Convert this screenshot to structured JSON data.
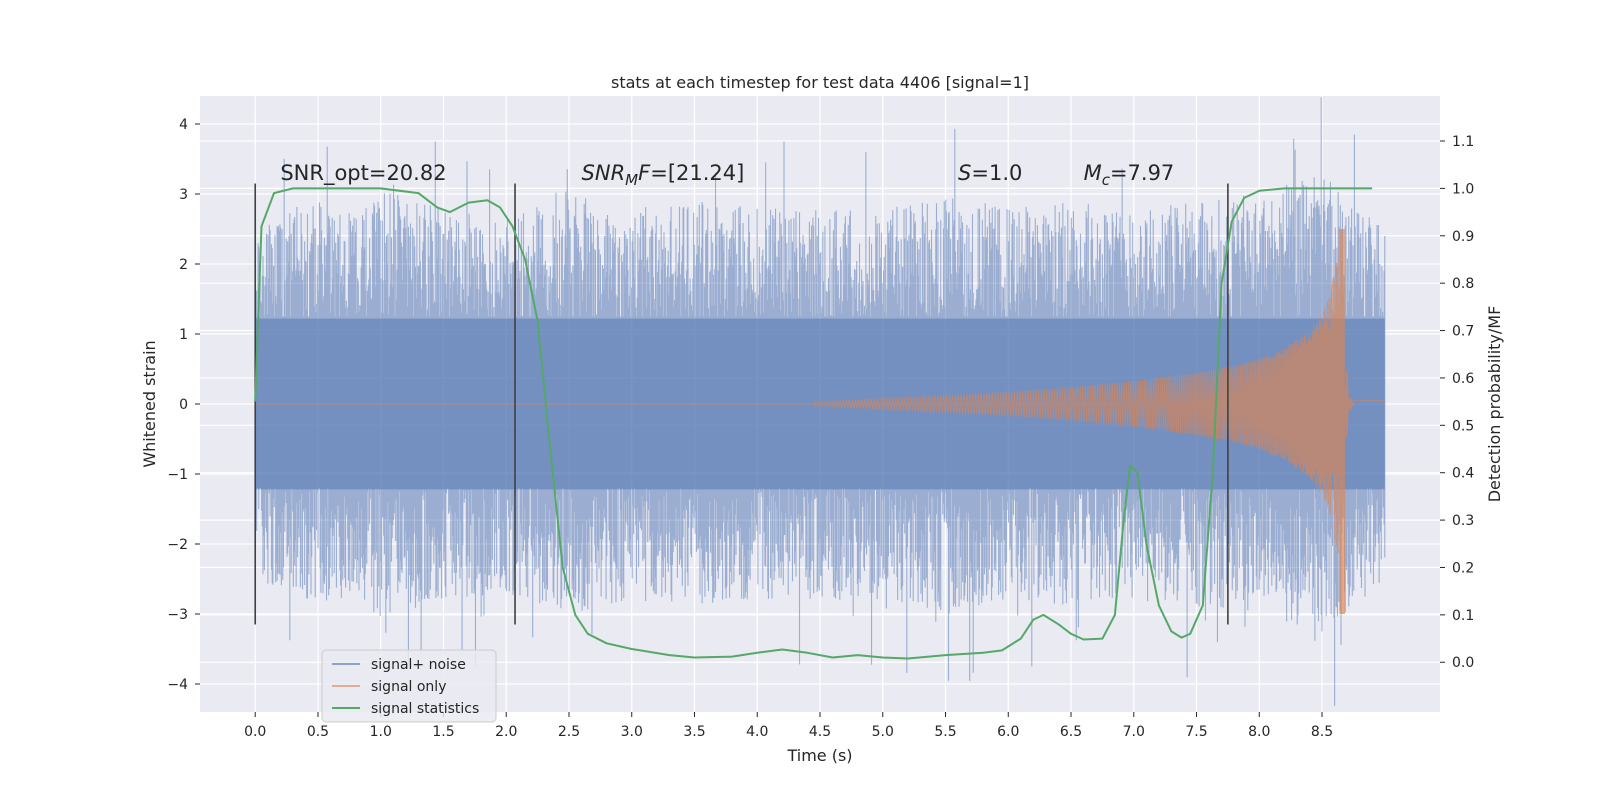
{
  "colors": {
    "background": "#eaeaf2",
    "grid": "#ffffff",
    "noise": "#4c72b0",
    "signal": "#dd8452",
    "stats": "#55a868",
    "vline": "#404040",
    "text": "#262626"
  },
  "chart_data": {
    "type": "line",
    "title": "stats at each timestep for test data 4406 [signal=1]",
    "xlabel": "Time (s)",
    "ylabel": "Whitened strain",
    "y2label": "Detection probability/MF",
    "xlim": [
      -0.44,
      9.44
    ],
    "ylim": [
      -4.4,
      4.4
    ],
    "y2lim": [
      -0.105,
      1.195
    ],
    "xticks": [
      0.0,
      0.5,
      1.0,
      1.5,
      2.0,
      2.5,
      3.0,
      3.5,
      4.0,
      4.5,
      5.0,
      5.5,
      6.0,
      6.5,
      7.0,
      7.5,
      8.0,
      8.5
    ],
    "xtick_labels": [
      "0.0",
      "0.5",
      "1.0",
      "1.5",
      "2.0",
      "2.5",
      "3.0",
      "3.5",
      "4.0",
      "4.5",
      "5.0",
      "5.5",
      "6.0",
      "6.5",
      "7.0",
      "7.5",
      "8.0",
      "8.5"
    ],
    "yticks": [
      -4,
      -3,
      -2,
      -1,
      0,
      1,
      2,
      3,
      4
    ],
    "ytick_labels": [
      "−4",
      "−3",
      "−2",
      "−1",
      "0",
      "1",
      "2",
      "3",
      "4"
    ],
    "y2ticks": [
      0.0,
      0.1,
      0.2,
      0.3,
      0.4,
      0.5,
      0.6,
      0.7,
      0.8,
      0.9,
      1.0,
      1.1
    ],
    "y2tick_labels": [
      "0.0",
      "0.1",
      "0.2",
      "0.3",
      "0.4",
      "0.5",
      "0.6",
      "0.7",
      "0.8",
      "0.9",
      "1.0",
      "1.1"
    ],
    "vlines": [
      0.0,
      2.07,
      7.75
    ],
    "vline_range": [
      -3.15,
      3.15
    ],
    "annotations": [
      {
        "x": 0.2,
        "y": 3.2,
        "label": "SNR_opt=20.82",
        "italic": false
      },
      {
        "x": 2.6,
        "y": 3.2,
        "label": "SNR_MF=[21.24]",
        "italic": true,
        "base": "SNR",
        "sub": "M",
        "rest": "F=[21.24]"
      },
      {
        "x": 5.6,
        "y": 3.2,
        "label": "S=1.0",
        "italic": true,
        "base": "S",
        "sub": "",
        "rest": "=1.0"
      },
      {
        "x": 6.6,
        "y": 3.2,
        "label": "M_c=7.97",
        "italic": true,
        "base": "M",
        "sub": "c",
        "rest": "=7.97"
      }
    ],
    "series": [
      {
        "name": "signal+ noise",
        "axis": "left",
        "t_range": [
          0.0,
          9.0
        ],
        "envelope": [
          [
            0.0,
            2.3
          ],
          [
            0.1,
            2.6
          ],
          [
            0.3,
            2.8
          ],
          [
            0.5,
            2.9
          ],
          [
            0.8,
            2.7
          ],
          [
            1.0,
            3.1
          ],
          [
            1.5,
            2.8
          ],
          [
            2.0,
            2.7
          ],
          [
            2.5,
            3.0
          ],
          [
            3.0,
            2.8
          ],
          [
            3.5,
            2.9
          ],
          [
            4.0,
            2.8
          ],
          [
            4.5,
            2.8
          ],
          [
            5.0,
            2.8
          ],
          [
            5.5,
            3.0
          ],
          [
            6.0,
            2.8
          ],
          [
            6.5,
            2.9
          ],
          [
            7.0,
            2.8
          ],
          [
            7.5,
            2.9
          ],
          [
            8.0,
            3.0
          ],
          [
            8.5,
            3.3
          ],
          [
            9.0,
            2.5
          ]
        ]
      },
      {
        "name": "signal only",
        "axis": "left",
        "envelope": [
          [
            4.5,
            0.03
          ],
          [
            5.0,
            0.08
          ],
          [
            5.5,
            0.12
          ],
          [
            6.0,
            0.17
          ],
          [
            6.5,
            0.24
          ],
          [
            7.0,
            0.33
          ],
          [
            7.5,
            0.45
          ],
          [
            7.8,
            0.55
          ],
          [
            8.0,
            0.65
          ],
          [
            8.2,
            0.8
          ],
          [
            8.4,
            1.05
          ],
          [
            8.5,
            1.3
          ],
          [
            8.55,
            1.5
          ],
          [
            8.6,
            1.9
          ],
          [
            8.63,
            2.3
          ],
          [
            8.66,
            2.6
          ],
          [
            8.68,
            0.8
          ],
          [
            8.72,
            0.1
          ],
          [
            8.8,
            0.0
          ]
        ]
      },
      {
        "name": "signal statistics",
        "axis": "right",
        "points": [
          [
            0.0,
            0.55
          ],
          [
            0.05,
            0.92
          ],
          [
            0.15,
            0.99
          ],
          [
            0.3,
            1.0
          ],
          [
            0.6,
            1.0
          ],
          [
            1.0,
            1.0
          ],
          [
            1.3,
            0.99
          ],
          [
            1.45,
            0.96
          ],
          [
            1.55,
            0.95
          ],
          [
            1.7,
            0.97
          ],
          [
            1.85,
            0.975
          ],
          [
            1.95,
            0.96
          ],
          [
            2.05,
            0.92
          ],
          [
            2.15,
            0.85
          ],
          [
            2.25,
            0.72
          ],
          [
            2.35,
            0.45
          ],
          [
            2.45,
            0.2
          ],
          [
            2.55,
            0.1
          ],
          [
            2.65,
            0.06
          ],
          [
            2.8,
            0.04
          ],
          [
            3.0,
            0.028
          ],
          [
            3.3,
            0.015
          ],
          [
            3.5,
            0.01
          ],
          [
            3.8,
            0.012
          ],
          [
            4.0,
            0.02
          ],
          [
            4.2,
            0.027
          ],
          [
            4.4,
            0.02
          ],
          [
            4.6,
            0.01
          ],
          [
            4.8,
            0.015
          ],
          [
            5.0,
            0.01
          ],
          [
            5.2,
            0.008
          ],
          [
            5.5,
            0.015
          ],
          [
            5.8,
            0.02
          ],
          [
            5.95,
            0.025
          ],
          [
            6.1,
            0.05
          ],
          [
            6.2,
            0.09
          ],
          [
            6.28,
            0.1
          ],
          [
            6.4,
            0.08
          ],
          [
            6.5,
            0.06
          ],
          [
            6.6,
            0.048
          ],
          [
            6.75,
            0.05
          ],
          [
            6.85,
            0.1
          ],
          [
            6.92,
            0.3
          ],
          [
            6.97,
            0.415
          ],
          [
            7.03,
            0.4
          ],
          [
            7.1,
            0.25
          ],
          [
            7.2,
            0.12
          ],
          [
            7.3,
            0.065
          ],
          [
            7.38,
            0.052
          ],
          [
            7.45,
            0.06
          ],
          [
            7.55,
            0.12
          ],
          [
            7.63,
            0.4
          ],
          [
            7.7,
            0.8
          ],
          [
            7.78,
            0.93
          ],
          [
            7.88,
            0.98
          ],
          [
            8.0,
            0.995
          ],
          [
            8.2,
            1.0
          ],
          [
            8.9,
            1.0
          ]
        ]
      }
    ],
    "legend": {
      "position": "lower-left",
      "entries": [
        "signal+ noise",
        "signal only",
        "signal statistics"
      ]
    }
  }
}
